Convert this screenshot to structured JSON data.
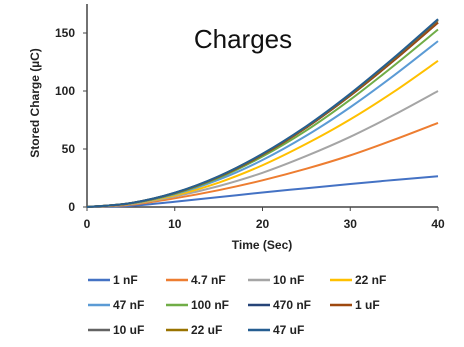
{
  "chart_data": {
    "type": "line",
    "title": "Charges",
    "xlabel": "Time (Sec)",
    "ylabel": "Stored Charge (µC)",
    "xlim": [
      0,
      40
    ],
    "ylim": [
      0,
      175
    ],
    "xticks": [
      0,
      10,
      20,
      30,
      40
    ],
    "yticks": [
      0,
      50,
      100,
      150
    ],
    "grid": false,
    "legend_position": "bottom",
    "x": [
      0,
      5,
      10,
      15,
      20,
      25,
      30,
      35,
      40
    ],
    "series": [
      {
        "name": "1 nF",
        "color": "#4472c4",
        "values": [
          0,
          1.0,
          4.5,
          8.5,
          12.5,
          16.2,
          19.8,
          23.3,
          26.5
        ]
      },
      {
        "name": "4.7 nF",
        "color": "#ed7d31",
        "values": [
          0,
          2.0,
          7.5,
          14.5,
          23.0,
          33.0,
          44.5,
          58.0,
          72.5
        ]
      },
      {
        "name": "10 nF",
        "color": "#a5a5a5",
        "values": [
          0,
          2.5,
          9.0,
          18.0,
          29.5,
          44.0,
          60.5,
          79.5,
          100.0
        ]
      },
      {
        "name": "22 nF",
        "color": "#ffc000",
        "values": [
          0,
          2.8,
          10.0,
          21.0,
          36.0,
          54.5,
          75.5,
          99.5,
          126.0
        ]
      },
      {
        "name": "47 nF",
        "color": "#5b9bd5",
        "values": [
          0,
          3.0,
          11.0,
          23.5,
          40.5,
          61.5,
          86.0,
          113.5,
          143.0
        ]
      },
      {
        "name": "100 nF",
        "color": "#70ad47",
        "values": [
          0,
          3.2,
          11.5,
          25.0,
          43.5,
          66.0,
          92.5,
          122.0,
          153.0
        ]
      },
      {
        "name": "470 nF",
        "color": "#264478",
        "values": [
          0,
          3.3,
          12.0,
          26.0,
          45.0,
          68.5,
          96.0,
          126.5,
          159.0
        ]
      },
      {
        "name": "1 uF",
        "color": "#9e480e",
        "values": [
          0,
          3.3,
          12.0,
          26.0,
          45.0,
          68.5,
          96.0,
          126.5,
          159.0
        ]
      },
      {
        "name": "10 uF",
        "color": "#636363",
        "values": [
          0,
          3.4,
          12.2,
          26.3,
          45.6,
          69.2,
          97.0,
          128.0,
          161.0
        ]
      },
      {
        "name": "22 uF",
        "color": "#997300",
        "values": [
          0,
          3.4,
          12.2,
          26.4,
          45.7,
          69.4,
          97.3,
          128.4,
          161.5
        ]
      },
      {
        "name": "47 uF",
        "color": "#255e91",
        "values": [
          0,
          3.4,
          12.3,
          26.5,
          45.9,
          69.7,
          97.7,
          128.9,
          162.0
        ]
      }
    ]
  }
}
